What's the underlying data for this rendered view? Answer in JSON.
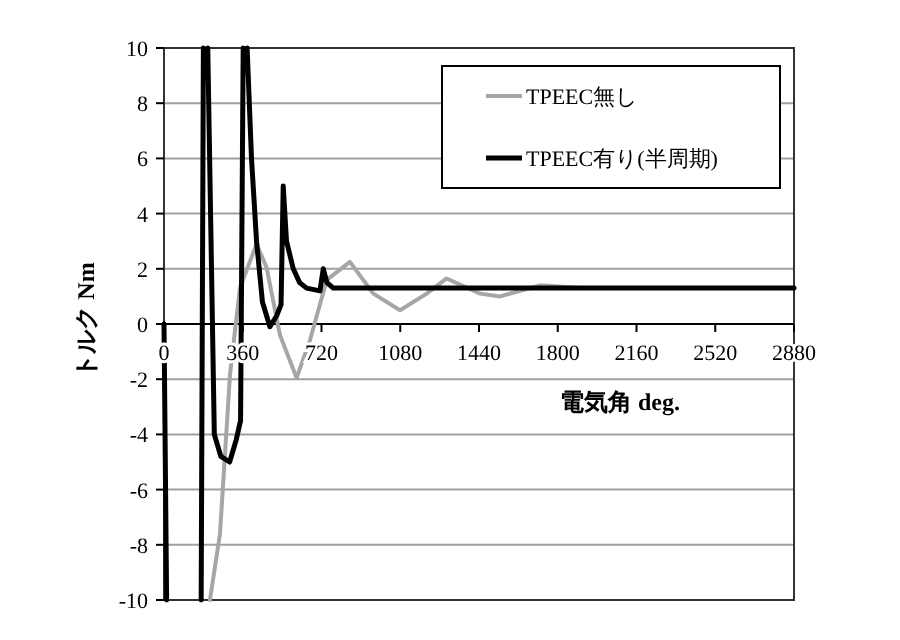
{
  "chart_data": {
    "type": "line",
    "xlabel": "電気角 deg.",
    "ylabel": "トルク Nm",
    "xlim": [
      0,
      2880
    ],
    "xticks": [
      0,
      360,
      720,
      1080,
      1440,
      1800,
      2160,
      2520,
      2880
    ],
    "ylim": [
      -10,
      10
    ],
    "yticks": [
      -10,
      -8,
      -6,
      -4,
      -2,
      0,
      2,
      4,
      6,
      8,
      10
    ],
    "grid": "y",
    "legend": "top right",
    "series": [
      {
        "name": "TPEEC無し",
        "color": "#a6a6a6",
        "x": [
          210,
          256,
          302,
          347,
          423,
          469,
          530,
          606,
          667,
          744,
          850,
          957,
          1079,
          1201,
          1292,
          1445,
          1536,
          1719,
          1900,
          2200,
          2500,
          2880
        ],
        "values": [
          -10,
          -7.6,
          -1.8,
          1.3,
          2.9,
          2.05,
          -0.4,
          -1.95,
          -0.6,
          1.6,
          2.25,
          1.1,
          0.5,
          1.1,
          1.65,
          1.1,
          1.0,
          1.4,
          1.3,
          1.3,
          1.3,
          1.3
        ]
      },
      {
        "name": "TPEEC有り(半周期)",
        "color": "#000000",
        "x": [
          0,
          12,
          null,
          170,
          180,
          null,
          200,
          230,
          260,
          300,
          330,
          350,
          362,
          null,
          380,
          400,
          423,
          450,
          484,
          515,
          535,
          545,
          560,
          591,
          620,
          652,
          713,
          728,
          745,
          774,
          900,
          1100,
          1400,
          1800,
          2200,
          2600,
          2880
        ],
        "values": [
          0,
          -10,
          null,
          -10,
          10,
          null,
          10,
          -4,
          -4.8,
          -5,
          -4.2,
          -3.5,
          10,
          null,
          10,
          6,
          3,
          0.8,
          -0.1,
          0.3,
          0.7,
          5.0,
          3,
          2.0,
          1.5,
          1.3,
          1.2,
          2.0,
          1.5,
          1.3,
          1.3,
          1.3,
          1.3,
          1.3,
          1.3,
          1.3,
          1.3
        ]
      }
    ]
  }
}
